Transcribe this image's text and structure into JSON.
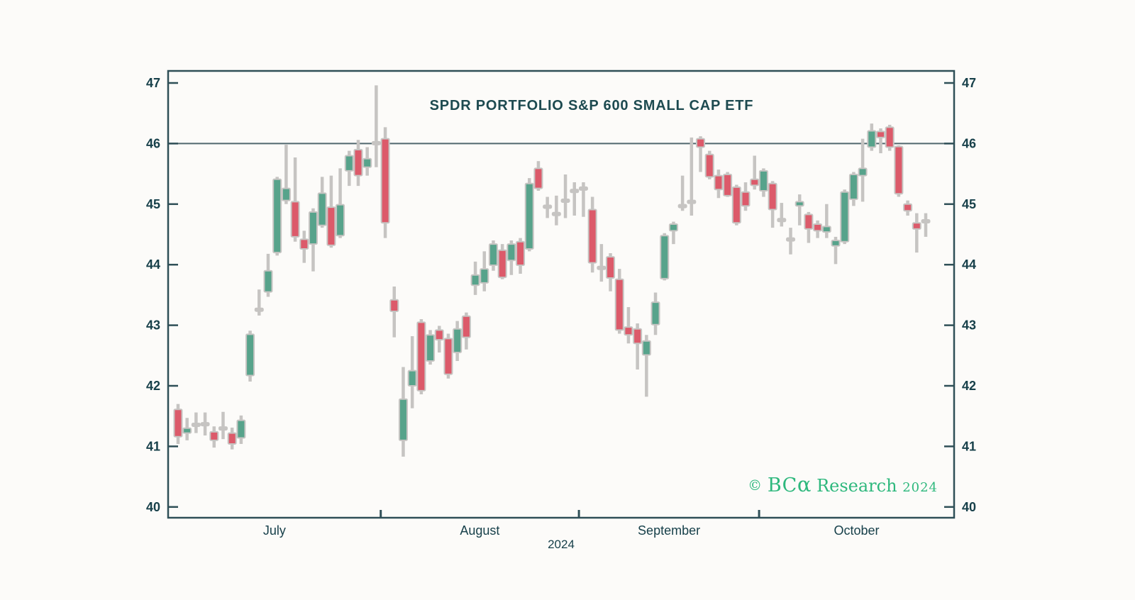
{
  "title": "SPDR PORTFOLIO S&P 600 SMALL CAP ETF",
  "watermark": {
    "copyright": "©",
    "brand": "BC",
    "alpha": "α",
    "research": "Research",
    "year": "2024",
    "color": "#2eb87d"
  },
  "colors": {
    "up": "#57a38b",
    "down": "#dc5a6a",
    "neutral": "#c6c4c2",
    "wick": "#c6c4c2",
    "axis": "#2f4f57",
    "label": "#17404a",
    "reference_line": "#51686e",
    "background": "#fcfbf9",
    "title_color": "#1d4a50"
  },
  "chart_data": {
    "type": "candlestick",
    "title": "SPDR PORTFOLIO S&P 600 SMALL CAP ETF",
    "ylim": [
      40,
      47
    ],
    "y_ticks": [
      40,
      41,
      42,
      43,
      44,
      45,
      46,
      47
    ],
    "y_axis_sides": "both",
    "grid": false,
    "reference_line": 46,
    "x_month_labels": [
      "July",
      "August",
      "September",
      "October"
    ],
    "month_boundary_after_candle": [
      23,
      45,
      65
    ],
    "year_label": "2024",
    "candles_ohlc_note": "each candle is [open, high, low, close]; close>open = green, close<open = red, |close-open|<=0.045 = gray doji",
    "candles": [
      [
        41.61,
        41.7,
        41.04,
        41.16
      ],
      [
        41.22,
        41.47,
        41.1,
        41.3
      ],
      [
        41.38,
        41.56,
        41.22,
        41.36
      ],
      [
        41.39,
        41.56,
        41.18,
        41.35
      ],
      [
        41.24,
        41.33,
        40.98,
        41.1
      ],
      [
        41.32,
        41.57,
        41.12,
        41.28
      ],
      [
        41.22,
        41.31,
        40.95,
        41.04
      ],
      [
        41.14,
        41.51,
        41.04,
        41.43
      ],
      [
        42.17,
        42.91,
        42.07,
        42.85
      ],
      [
        43.28,
        43.59,
        43.16,
        43.24
      ],
      [
        43.55,
        44.18,
        43.47,
        43.9
      ],
      [
        44.2,
        45.45,
        44.15,
        45.41
      ],
      [
        45.06,
        45.98,
        45.0,
        45.26
      ],
      [
        45.04,
        45.77,
        44.38,
        44.46
      ],
      [
        44.42,
        44.56,
        44.03,
        44.26
      ],
      [
        44.34,
        44.93,
        43.89,
        44.87
      ],
      [
        44.65,
        45.45,
        44.61,
        45.18
      ],
      [
        44.95,
        45.47,
        44.28,
        44.32
      ],
      [
        44.48,
        45.59,
        44.44,
        44.99
      ],
      [
        45.55,
        45.88,
        45.3,
        45.8
      ],
      [
        45.9,
        46.06,
        45.3,
        45.47
      ],
      [
        45.61,
        45.94,
        45.47,
        45.75
      ],
      [
        46.03,
        46.96,
        45.61,
        45.99
      ],
      [
        46.08,
        46.27,
        44.44,
        44.69
      ],
      [
        43.42,
        43.64,
        42.8,
        43.23
      ],
      [
        41.1,
        42.31,
        40.83,
        41.78
      ],
      [
        42.0,
        42.82,
        41.63,
        42.25
      ],
      [
        43.05,
        43.1,
        41.86,
        41.92
      ],
      [
        42.41,
        42.92,
        42.35,
        42.84
      ],
      [
        42.92,
        42.99,
        42.55,
        42.76
      ],
      [
        42.78,
        42.86,
        42.12,
        42.19
      ],
      [
        42.55,
        43.07,
        42.41,
        42.94
      ],
      [
        43.15,
        43.21,
        42.6,
        42.8
      ],
      [
        43.66,
        44.05,
        43.5,
        43.83
      ],
      [
        43.7,
        44.22,
        43.56,
        43.93
      ],
      [
        43.99,
        44.4,
        43.9,
        44.34
      ],
      [
        44.24,
        44.34,
        43.76,
        43.79
      ],
      [
        44.07,
        44.4,
        43.83,
        44.34
      ],
      [
        44.38,
        44.44,
        43.85,
        43.99
      ],
      [
        44.26,
        45.43,
        44.22,
        45.34
      ],
      [
        45.59,
        45.71,
        45.22,
        45.26
      ],
      [
        44.98,
        45.12,
        44.77,
        44.95
      ],
      [
        44.86,
        45.14,
        44.65,
        44.82
      ],
      [
        45.08,
        45.49,
        44.77,
        45.04
      ],
      [
        45.24,
        45.36,
        44.81,
        45.2
      ],
      [
        45.28,
        45.36,
        44.79,
        45.24
      ],
      [
        44.91,
        45.12,
        43.87,
        44.03
      ],
      [
        43.97,
        44.34,
        43.72,
        43.93
      ],
      [
        44.13,
        44.19,
        43.56,
        43.78
      ],
      [
        43.76,
        43.93,
        42.86,
        42.92
      ],
      [
        42.97,
        43.3,
        42.7,
        42.84
      ],
      [
        42.94,
        43.03,
        42.27,
        42.7
      ],
      [
        42.51,
        42.84,
        41.82,
        42.74
      ],
      [
        43.01,
        43.54,
        42.84,
        43.38
      ],
      [
        43.77,
        44.52,
        43.74,
        44.48
      ],
      [
        44.56,
        44.71,
        44.34,
        44.67
      ],
      [
        44.99,
        45.47,
        44.89,
        44.95
      ],
      [
        45.06,
        46.1,
        44.81,
        45.02
      ],
      [
        46.08,
        46.12,
        45.53,
        45.94
      ],
      [
        45.82,
        45.88,
        45.41,
        45.45
      ],
      [
        45.47,
        45.57,
        45.1,
        45.24
      ],
      [
        45.49,
        45.53,
        45.12,
        45.14
      ],
      [
        45.28,
        45.32,
        44.65,
        44.69
      ],
      [
        45.2,
        45.36,
        44.89,
        44.97
      ],
      [
        45.41,
        45.8,
        45.24,
        45.31
      ],
      [
        45.22,
        45.59,
        45.12,
        45.55
      ],
      [
        45.34,
        45.38,
        44.61,
        44.91
      ],
      [
        44.76,
        45.02,
        44.63,
        44.72
      ],
      [
        44.44,
        44.61,
        44.17,
        44.4
      ],
      [
        44.97,
        45.16,
        44.65,
        45.04
      ],
      [
        44.83,
        44.87,
        44.36,
        44.59
      ],
      [
        44.67,
        44.73,
        44.44,
        44.56
      ],
      [
        44.54,
        45.0,
        44.44,
        44.63
      ],
      [
        44.31,
        44.46,
        44.01,
        44.4
      ],
      [
        44.38,
        45.24,
        44.34,
        45.2
      ],
      [
        45.08,
        45.53,
        44.97,
        45.49
      ],
      [
        45.47,
        46.08,
        45.04,
        45.59
      ],
      [
        45.94,
        46.33,
        45.88,
        46.21
      ],
      [
        46.2,
        46.25,
        45.84,
        46.1
      ],
      [
        46.27,
        46.31,
        45.88,
        45.94
      ],
      [
        45.95,
        45.97,
        45.12,
        45.17
      ],
      [
        45.0,
        45.06,
        44.81,
        44.89
      ],
      [
        44.69,
        44.85,
        44.2,
        44.59
      ],
      [
        44.74,
        44.85,
        44.46,
        44.7
      ]
    ]
  }
}
